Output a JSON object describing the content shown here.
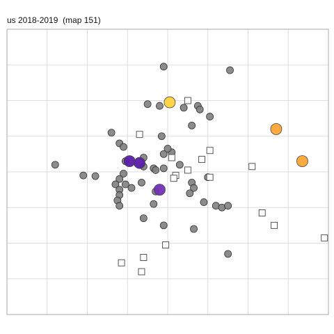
{
  "chart_data": {
    "type": "scatter",
    "title": "us 2018-2019  (map 151)",
    "xlabel": "",
    "ylabel": "",
    "xlim": [
      -4.0,
      4.0
    ],
    "ylim": [
      -4.0,
      4.0
    ],
    "grid": true,
    "colors": {
      "grid": "#dddddd",
      "frame": "#aaaaaa",
      "gray_point": "#808080",
      "gray_point_stroke": "#333333",
      "square_fill": "#ffffff",
      "square_stroke": "#444444",
      "yellow": "#ffd23f",
      "orange": "#ffa536",
      "purple_dark": "#5a1ea8",
      "purple_mid": "#7432b8"
    },
    "series": [
      {
        "shape": "circle",
        "color": "gray_point",
        "size": "small",
        "points": [
          [
            -2.8,
            0.2
          ],
          [
            -2.1,
            -0.1
          ],
          [
            -1.8,
            -0.12
          ],
          [
            -1.4,
            1.1
          ],
          [
            -1.2,
            0.8
          ],
          [
            -1.1,
            0.7
          ],
          [
            -1.05,
            0.3
          ],
          [
            -1.1,
            -0.05
          ],
          [
            -1.2,
            -0.2
          ],
          [
            -1.3,
            -0.35
          ],
          [
            -1.2,
            -0.5
          ],
          [
            -1.2,
            -0.65
          ],
          [
            -1.25,
            -0.8
          ],
          [
            -1.2,
            -0.95
          ],
          [
            -1.05,
            -0.35
          ],
          [
            -0.9,
            -0.45
          ],
          [
            -0.65,
            -0.3
          ],
          [
            -0.35,
            -0.9
          ],
          [
            -0.6,
            -1.3
          ],
          [
            -0.1,
            -1.5
          ],
          [
            -0.6,
            0.15
          ],
          [
            -0.35,
            0.1
          ],
          [
            -0.3,
            0.05
          ],
          [
            -0.3,
            -0.55
          ],
          [
            -0.1,
            0.1
          ],
          [
            0.3,
            0.2
          ],
          [
            -0.1,
            0.5
          ],
          [
            0.1,
            0.55
          ],
          [
            0.0,
            0.65
          ],
          [
            -0.6,
            0.4
          ],
          [
            -0.15,
            1.0
          ],
          [
            0.6,
            1.3
          ],
          [
            -0.5,
            1.9
          ],
          [
            -0.2,
            1.85
          ],
          [
            0.4,
            1.8
          ],
          [
            0.75,
            1.85
          ],
          [
            0.8,
            1.75
          ],
          [
            1.05,
            1.55
          ],
          [
            -0.1,
            2.95
          ],
          [
            1.55,
            2.85
          ],
          [
            0.6,
            -0.3
          ],
          [
            0.65,
            -0.45
          ],
          [
            0.55,
            -0.6
          ],
          [
            0.9,
            -0.85
          ],
          [
            1.0,
            -0.15
          ],
          [
            1.2,
            -0.95
          ],
          [
            1.35,
            -1.0
          ],
          [
            1.5,
            -0.95
          ],
          [
            0.65,
            -1.6
          ],
          [
            1.5,
            -2.3
          ]
        ]
      },
      {
        "shape": "square",
        "color": "square_fill",
        "size": "small",
        "points": [
          [
            0.5,
            2.0
          ],
          [
            -0.7,
            1.05
          ],
          [
            0.1,
            0.4
          ],
          [
            0.85,
            0.35
          ],
          [
            1.05,
            0.6
          ],
          [
            0.5,
            0.05
          ],
          [
            0.2,
            -0.1
          ],
          [
            0.15,
            -0.18
          ],
          [
            1.05,
            -0.15
          ],
          [
            2.1,
            0.15
          ],
          [
            2.35,
            -1.15
          ],
          [
            2.65,
            -1.5
          ],
          [
            3.9,
            -1.85
          ],
          [
            -0.05,
            -2.05
          ],
          [
            -0.6,
            -2.4
          ],
          [
            -1.15,
            -2.55
          ],
          [
            -0.65,
            -2.8
          ]
        ]
      },
      {
        "shape": "circle",
        "color": "purple_dark",
        "size": "large",
        "points": [
          [
            -0.95,
            0.3
          ],
          [
            -0.7,
            0.25
          ]
        ]
      },
      {
        "shape": "circle",
        "color": "purple_mid",
        "size": "large",
        "points": [
          [
            -0.2,
            -0.5
          ]
        ]
      },
      {
        "shape": "circle",
        "color": "yellow",
        "size": "large",
        "points": [
          [
            0.05,
            1.95
          ]
        ]
      },
      {
        "shape": "circle",
        "color": "orange",
        "size": "large",
        "points": [
          [
            2.7,
            1.2
          ],
          [
            3.35,
            0.3
          ]
        ]
      }
    ]
  }
}
